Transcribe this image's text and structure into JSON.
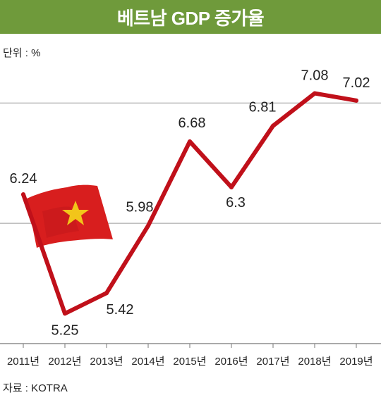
{
  "chart_data": {
    "type": "line",
    "title": "베트남 GDP 증가율",
    "unit_label": "단위 : %",
    "source": "자료 : KOTRA",
    "categories": [
      "2011년",
      "2012년",
      "2013년",
      "2014년",
      "2015년",
      "2016년",
      "2017년",
      "2018년",
      "2019년"
    ],
    "values": [
      6.24,
      5.25,
      5.42,
      5.98,
      6.68,
      6.3,
      6.81,
      7.08,
      7.02
    ],
    "value_labels": [
      "6.24",
      "5.25",
      "5.42",
      "5.98",
      "6.68",
      "6.3",
      "6.81",
      "7.08",
      "7.02"
    ],
    "ylim": [
      5.0,
      7.3
    ],
    "grid": true,
    "line_color": "#c0101a",
    "header_color": "#6f9a3b",
    "decoration": "vietnam-flag-icon"
  }
}
